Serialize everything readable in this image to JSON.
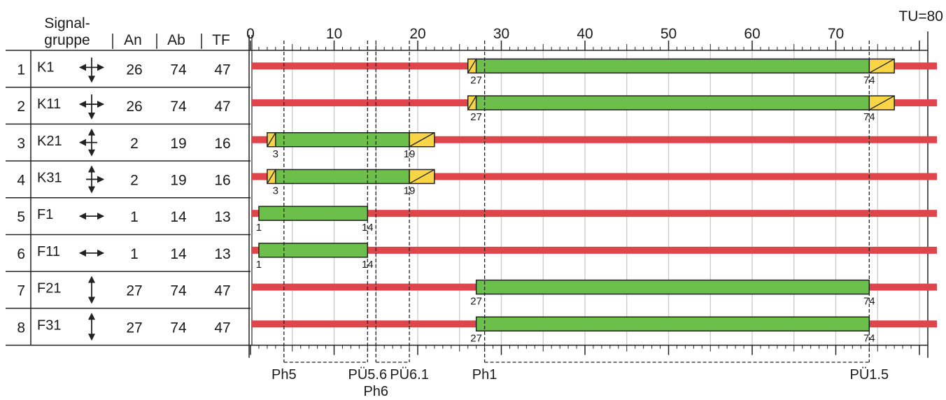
{
  "cycle_label": "TU=80",
  "cycle_length": 80,
  "header": {
    "signal_group_line1": "Signal-",
    "signal_group_line2": "gruppe",
    "on_label": "An",
    "off_label": "Ab",
    "tf_label": "TF"
  },
  "colors": {
    "red": "#e0454b",
    "green": "#6bbf4a",
    "yellow": "#f7d547",
    "grid": "#c9c9c9",
    "line": "#222222"
  },
  "axis": {
    "min": 0,
    "max": 80,
    "major_tick_labels": [
      {
        "value": 0,
        "label": "0"
      },
      {
        "value": 10,
        "label": "10"
      },
      {
        "value": 20,
        "label": "20"
      },
      {
        "value": 30,
        "label": "30"
      },
      {
        "value": 40,
        "label": "40"
      },
      {
        "value": 50,
        "label": "50"
      },
      {
        "value": 60,
        "label": "60"
      },
      {
        "value": 70,
        "label": "70"
      }
    ]
  },
  "signal_groups": [
    {
      "no": "1",
      "name": "K1",
      "symbol": "cross-down",
      "on": "26",
      "off": "74",
      "tf": "47",
      "green_start": 27,
      "green_end": 74,
      "pre_yellow_start": 26,
      "amber_end": 77,
      "on_marker": "27",
      "off_marker": "74"
    },
    {
      "no": "2",
      "name": "K11",
      "symbol": "cross-down",
      "on": "26",
      "off": "74",
      "tf": "47",
      "green_start": 27,
      "green_end": 74,
      "pre_yellow_start": 26,
      "amber_end": 77,
      "on_marker": "27",
      "off_marker": "74"
    },
    {
      "no": "3",
      "name": "K21",
      "symbol": "cross-left",
      "on": "2",
      "off": "19",
      "tf": "16",
      "green_start": 3,
      "green_end": 19,
      "pre_yellow_start": 2,
      "amber_end": 22,
      "on_marker": "3",
      "off_marker": "19"
    },
    {
      "no": "4",
      "name": "K31",
      "symbol": "cross-right",
      "on": "2",
      "off": "19",
      "tf": "16",
      "green_start": 3,
      "green_end": 19,
      "pre_yellow_start": 2,
      "amber_end": 22,
      "on_marker": "3",
      "off_marker": "19"
    },
    {
      "no": "5",
      "name": "F1",
      "symbol": "horizontal",
      "on": "1",
      "off": "14",
      "tf": "13",
      "green_start": 1,
      "green_end": 14,
      "pre_yellow_start": null,
      "amber_end": null,
      "on_marker": "1",
      "off_marker": "14"
    },
    {
      "no": "6",
      "name": "F11",
      "symbol": "horizontal",
      "on": "1",
      "off": "14",
      "tf": "13",
      "green_start": 1,
      "green_end": 14,
      "pre_yellow_start": null,
      "amber_end": null,
      "on_marker": "1",
      "off_marker": "14"
    },
    {
      "no": "7",
      "name": "F21",
      "symbol": "vertical",
      "on": "27",
      "off": "74",
      "tf": "47",
      "green_start": 27,
      "green_end": 74,
      "pre_yellow_start": null,
      "amber_end": null,
      "on_marker": "27",
      "off_marker": "74"
    },
    {
      "no": "8",
      "name": "F31",
      "symbol": "vertical",
      "on": "27",
      "off": "74",
      "tf": "47",
      "green_start": 27,
      "green_end": 74,
      "pre_yellow_start": null,
      "amber_end": null,
      "on_marker": "27",
      "off_marker": "74"
    }
  ],
  "dashed_lines": [
    4,
    14,
    15,
    19,
    28,
    74
  ],
  "phases": [
    {
      "label": "Ph5",
      "at": 4,
      "row": 1
    },
    {
      "label": "PÜ5.6",
      "at": 14,
      "row": 1
    },
    {
      "label": "Ph6",
      "at": 15,
      "row": 2
    },
    {
      "label": "PÜ6.1",
      "at": 19,
      "row": 1
    },
    {
      "label": "Ph1",
      "at": 28,
      "row": 1
    },
    {
      "label": "PÜ1.5",
      "at": 74,
      "row": 1
    }
  ],
  "phase_spans": [
    {
      "from": 4,
      "to": 14
    },
    {
      "from": 15,
      "to": 19
    },
    {
      "from": 28,
      "to": 74
    }
  ]
}
